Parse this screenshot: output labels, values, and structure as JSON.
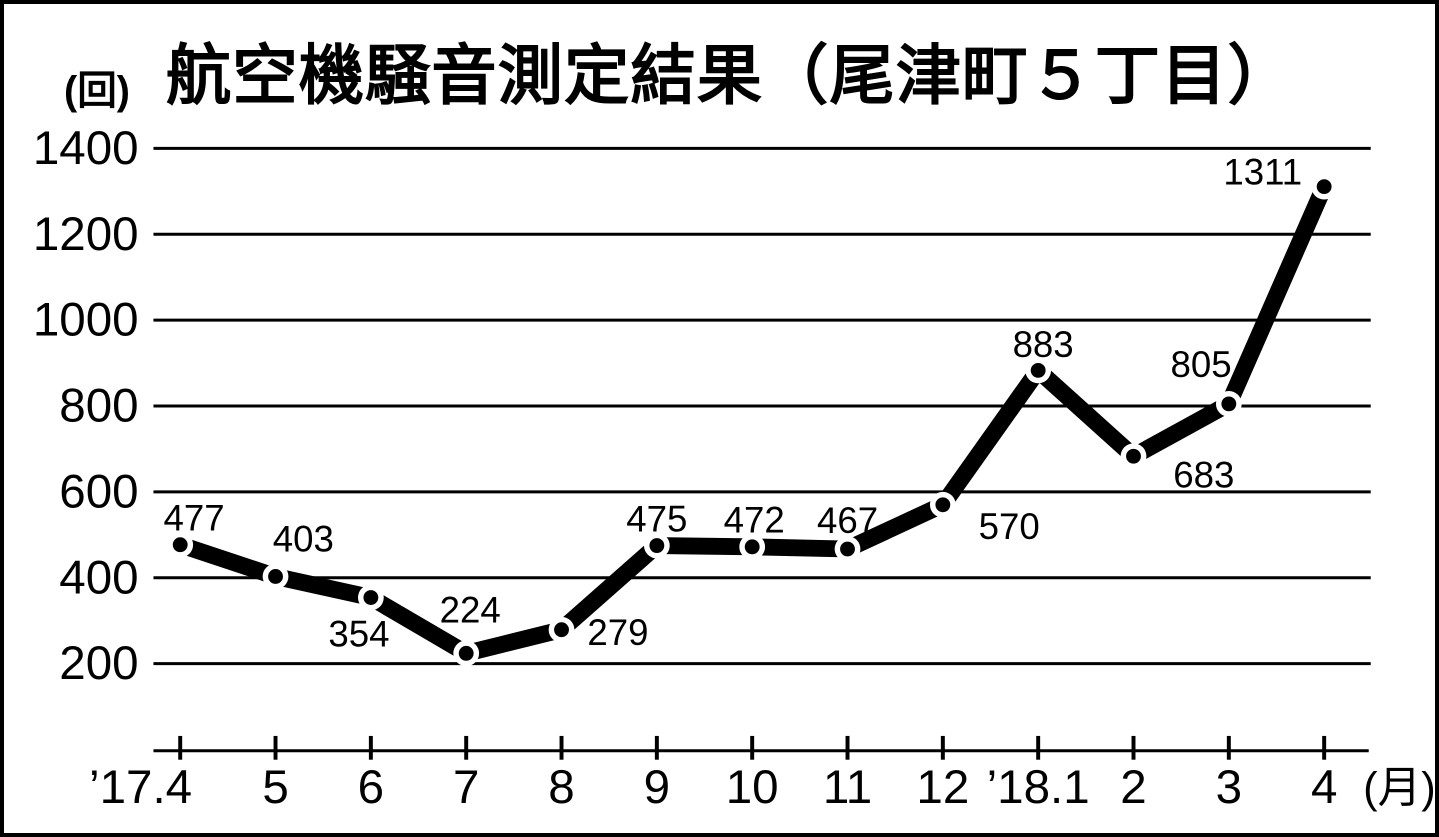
{
  "chart_data": {
    "type": "line",
    "title": "航空機騒音測定結果（尾津町５丁目）",
    "y_unit_label": "(回)",
    "x_unit_label": "(月)",
    "categories": [
      "’17.4",
      "5",
      "6",
      "7",
      "8",
      "9",
      "10",
      "11",
      "12",
      "’18.1",
      "2",
      "3",
      "4"
    ],
    "values": [
      477,
      403,
      354,
      224,
      279,
      475,
      472,
      467,
      570,
      883,
      683,
      805,
      1311
    ],
    "y_ticks": [
      200,
      400,
      600,
      800,
      1000,
      1200,
      1400
    ],
    "ylim": [
      0,
      1400
    ],
    "grid": "horizontal",
    "legend": "none",
    "line_color": "#000000",
    "marker_style": "black-dot-with-white-ring",
    "background_color": "#ffffff"
  }
}
